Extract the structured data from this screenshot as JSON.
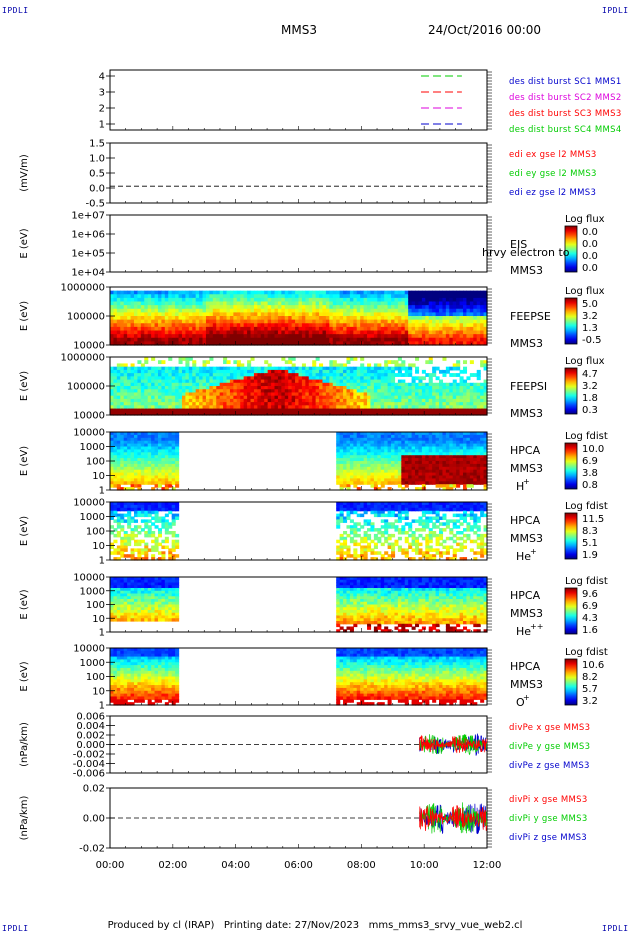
{
  "header": {
    "corner_tl": "IPDLI",
    "corner_tr": "IPDLI",
    "corner_bl": "IPDLI",
    "corner_br": "IPDLI",
    "mission": "MMS3",
    "date": "24/Oct/2016 00:00"
  },
  "footer": {
    "produced": "Produced by cl (IRAP)",
    "printed": "Printing date: 27/Nov/2023",
    "file": "mms_mms3_srvy_vue_web2.cl"
  },
  "colors": {
    "red": "#ff0000",
    "green": "#00cc00",
    "blue": "#0000cc",
    "magenta": "#dd00dd"
  },
  "chart_data": [
    {
      "id": "p1",
      "type": "line",
      "yticks": [
        "4",
        "3",
        "2",
        "1"
      ],
      "legend": [
        {
          "name": "des dist burst SC1 MMS1",
          "color": "#0000cc"
        },
        {
          "name": "des dist burst SC2 MMS2",
          "color": "#dd00dd"
        },
        {
          "name": "des dist burst SC3 MMS3",
          "color": "#ff0000"
        },
        {
          "name": "des dist burst SC4 MMS4",
          "color": "#00cc00"
        }
      ],
      "x_range_hours": [
        9.9,
        11.2
      ]
    },
    {
      "id": "p2",
      "type": "line",
      "ylabel": "(mV/m)",
      "yticks": [
        "1.5",
        "1.0",
        "0.5",
        "0.0",
        "-0.5"
      ],
      "ylim": [
        -0.7,
        1.8
      ],
      "legend": [
        {
          "name": "edi ex gse l2 MMS3",
          "color": "#ff0000"
        },
        {
          "name": "edi ey gse l2 MMS3",
          "color": "#00cc00"
        },
        {
          "name": "edi ez gse l2 MMS3",
          "color": "#0000cc"
        }
      ]
    },
    {
      "id": "p3",
      "type": "heatmap",
      "ylabel": "E (eV)",
      "yticks": [
        "1e+07",
        "1e+06",
        "1e+05",
        "1e+04"
      ],
      "instrument": "EIS",
      "spacecraft": "MMS3",
      "overlay": "hrvy electron to",
      "cbar_title": "Log flux",
      "cbar_ticks": [
        "0.0",
        "0.0",
        "0.0",
        "0.0"
      ]
    },
    {
      "id": "p4",
      "type": "heatmap",
      "ylabel": "E (eV)",
      "yticks": [
        "1000000",
        "100000",
        "10000"
      ],
      "instrument": "FEEPSE",
      "spacecraft": "MMS3",
      "cbar_title": "Log flux",
      "cbar_ticks": [
        "5.0",
        "3.2",
        "1.3",
        "-0.5"
      ]
    },
    {
      "id": "p5",
      "type": "heatmap",
      "ylabel": "E (eV)",
      "yticks": [
        "1000000",
        "100000",
        "10000"
      ],
      "instrument": "FEEPSI",
      "spacecraft": "MMS3",
      "cbar_title": "Log flux",
      "cbar_ticks": [
        "4.7",
        "3.2",
        "1.8",
        "0.3"
      ]
    },
    {
      "id": "p6",
      "type": "heatmap",
      "ylabel": "E (eV)",
      "yticks": [
        "10000",
        "1000",
        "100",
        "10",
        "1"
      ],
      "instrument": "HPCA",
      "spacecraft": "MMS3",
      "species": "H",
      "charge": "+",
      "cbar_title": "Log fdist",
      "cbar_ticks": [
        "10.0",
        "6.9",
        "3.8",
        "0.8"
      ]
    },
    {
      "id": "p7",
      "type": "heatmap",
      "ylabel": "E (eV)",
      "yticks": [
        "10000",
        "1000",
        "100",
        "10",
        "1"
      ],
      "instrument": "HPCA",
      "spacecraft": "MMS3",
      "species": "He",
      "charge": "+",
      "cbar_title": "Log fdist",
      "cbar_ticks": [
        "11.5",
        "8.3",
        "5.1",
        "1.9"
      ]
    },
    {
      "id": "p8",
      "type": "heatmap",
      "ylabel": "E (eV)",
      "yticks": [
        "10000",
        "1000",
        "100",
        "10",
        "1"
      ],
      "instrument": "HPCA",
      "spacecraft": "MMS3",
      "species": "He",
      "charge": "++",
      "cbar_title": "Log fdist",
      "cbar_ticks": [
        "9.6",
        "6.9",
        "4.3",
        "1.6"
      ]
    },
    {
      "id": "p9",
      "type": "heatmap",
      "ylabel": "E (eV)",
      "yticks": [
        "10000",
        "1000",
        "100",
        "10",
        "1"
      ],
      "instrument": "HPCA",
      "spacecraft": "MMS3",
      "species": "O",
      "charge": "+",
      "cbar_title": "Log fdist",
      "cbar_ticks": [
        "10.6",
        "8.2",
        "5.7",
        "3.2"
      ]
    },
    {
      "id": "p10",
      "type": "line",
      "ylabel": "(nPa/km)",
      "yticks": [
        "0.006",
        "0.004",
        "0.002",
        "0.000",
        "-0.002",
        "-0.004",
        "-0.006"
      ],
      "ylim": [
        -0.0066,
        0.0066
      ],
      "legend": [
        {
          "name": "divPe x gse MMS3",
          "color": "#ff0000"
        },
        {
          "name": "divPe y gse MMS3",
          "color": "#00cc00"
        },
        {
          "name": "divPe z gse MMS3",
          "color": "#0000cc"
        }
      ]
    },
    {
      "id": "p11",
      "type": "line",
      "ylabel": "(nPa/km)",
      "yticks": [
        "0.02",
        "0.00",
        "-0.02"
      ],
      "ylim": [
        -0.029,
        0.029
      ],
      "legend": [
        {
          "name": "divPi x gse MMS3",
          "color": "#ff0000"
        },
        {
          "name": "divPi y gse MMS3",
          "color": "#00cc00"
        },
        {
          "name": "divPi z gse MMS3",
          "color": "#0000cc"
        }
      ]
    }
  ],
  "x_axis": {
    "ticks": [
      "00:00",
      "02:00",
      "04:00",
      "06:00",
      "08:00",
      "10:00",
      "12:00"
    ],
    "range_hours": [
      0,
      12
    ]
  }
}
